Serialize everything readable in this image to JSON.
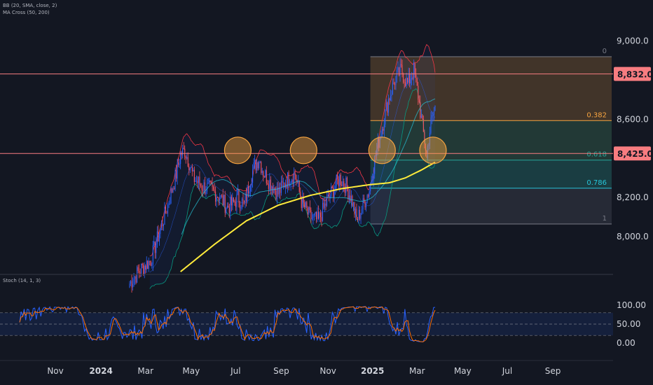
{
  "indicators": {
    "bb": "BB (20, SMA, close, 2)",
    "ma_cross": "MA Cross (50, 200)",
    "stoch": "Stoch (14, 1, 3)"
  },
  "colors": {
    "background": "#131722",
    "candle_up": "#2962ff",
    "candle_down": "#f7525f",
    "hline": "#f77c80",
    "ma200": "#ffeb3b",
    "stoch_k": "#2962ff",
    "stoch_d": "#ff6d00"
  },
  "chart_data": {
    "type": "candlestick",
    "price_ticks": [
      "9,000.0",
      "8,600.0",
      "8,200.0",
      "8,000.0"
    ],
    "ylim": [
      7830,
      9120
    ],
    "x_labels": [
      {
        "label": "Nov",
        "bar": -70,
        "bold": false
      },
      {
        "label": "2024",
        "bar": -27,
        "bold": true
      },
      {
        "label": "Mar",
        "bar": 15,
        "bold": false
      },
      {
        "label": "May",
        "bar": 58,
        "bold": false
      },
      {
        "label": "Jul",
        "bar": 100,
        "bold": false
      },
      {
        "label": "Sep",
        "bar": 143,
        "bold": false
      },
      {
        "label": "Nov",
        "bar": 187,
        "bold": false
      },
      {
        "label": "2025",
        "bar": 229,
        "bold": true
      },
      {
        "label": "Mar",
        "bar": 271,
        "bold": false
      },
      {
        "label": "May",
        "bar": 314,
        "bold": false
      },
      {
        "label": "Jul",
        "bar": 356,
        "bold": false
      },
      {
        "label": "Sep",
        "bar": 399,
        "bold": false
      }
    ],
    "horizontal_levels": [
      {
        "value": 8832.0,
        "label": "8,832.0"
      },
      {
        "value": 8425.0,
        "label": "8,425.0"
      }
    ],
    "fib": {
      "start_bar": 227,
      "end_bar": 407,
      "levels": [
        {
          "ratio": "0",
          "value": 8920,
          "fill": "#4a3a2a",
          "line": "#787b86"
        },
        {
          "ratio": "0.382",
          "value": 8593,
          "fill": "#263f3a",
          "line": "#f7a440"
        },
        {
          "ratio": "0.618",
          "value": 8391,
          "fill": "#1c4448",
          "line": "#26a69a"
        },
        {
          "ratio": "0.786",
          "value": 8247,
          "fill": "#2a2e39",
          "line": "#26c6da"
        },
        {
          "ratio": "1",
          "value": 8064,
          "fill": null,
          "line": "#787b86"
        }
      ]
    },
    "highlight_circles": [
      {
        "bar": 102,
        "value": 8430
      },
      {
        "bar": 164,
        "value": 8430
      },
      {
        "bar": 238,
        "value": 8430
      },
      {
        "bar": 286,
        "value": 8430
      }
    ],
    "ohlc_keypoints": [
      [
        0,
        7760
      ],
      [
        10,
        7830
      ],
      [
        20,
        7880
      ],
      [
        28,
        8020
      ],
      [
        36,
        8160
      ],
      [
        44,
        8320
      ],
      [
        48,
        8420
      ],
      [
        52,
        8440
      ],
      [
        56,
        8380
      ],
      [
        60,
        8300
      ],
      [
        68,
        8260
      ],
      [
        76,
        8240
      ],
      [
        84,
        8210
      ],
      [
        92,
        8150
      ],
      [
        98,
        8170
      ],
      [
        102,
        8200
      ],
      [
        108,
        8160
      ],
      [
        116,
        8340
      ],
      [
        122,
        8400
      ],
      [
        126,
        8330
      ],
      [
        132,
        8280
      ],
      [
        140,
        8220
      ],
      [
        148,
        8290
      ],
      [
        156,
        8320
      ],
      [
        162,
        8180
      ],
      [
        170,
        8100
      ],
      [
        178,
        8080
      ],
      [
        186,
        8180
      ],
      [
        192,
        8240
      ],
      [
        198,
        8300
      ],
      [
        204,
        8260
      ],
      [
        210,
        8180
      ],
      [
        214,
        8080
      ],
      [
        220,
        8160
      ],
      [
        226,
        8240
      ],
      [
        232,
        8420
      ],
      [
        238,
        8560
      ],
      [
        244,
        8700
      ],
      [
        250,
        8800
      ],
      [
        256,
        8850
      ],
      [
        262,
        8780
      ],
      [
        268,
        8850
      ],
      [
        272,
        8720
      ],
      [
        276,
        8560
      ],
      [
        280,
        8420
      ],
      [
        284,
        8580
      ],
      [
        288,
        8660
      ]
    ],
    "ma200_keypoints": [
      [
        48,
        7820
      ],
      [
        80,
        7960
      ],
      [
        110,
        8080
      ],
      [
        140,
        8160
      ],
      [
        170,
        8210
      ],
      [
        200,
        8245
      ],
      [
        226,
        8265
      ],
      [
        245,
        8275
      ],
      [
        260,
        8300
      ],
      [
        275,
        8340
      ],
      [
        288,
        8380
      ]
    ],
    "stoch_axis": {
      "ticks": [
        "100.00",
        "50.00",
        "0.00"
      ],
      "ylim": [
        0,
        100
      ],
      "band": [
        20,
        80
      ]
    }
  }
}
